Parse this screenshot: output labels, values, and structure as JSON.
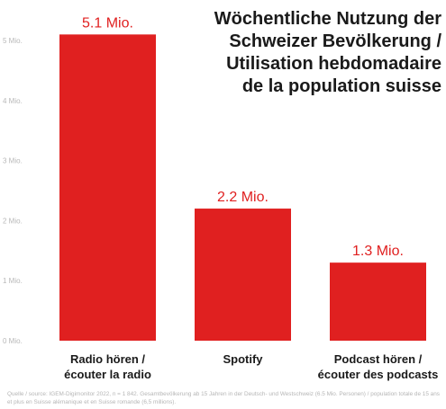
{
  "chart_data": {
    "type": "bar",
    "title_lines": [
      "Wöchentliche Nutzung der",
      "Schweizer Bevölkerung /",
      "Utilisation hebdomadaire",
      "de la population suisse"
    ],
    "categories": [
      [
        "Radio hören /",
        "écouter la radio"
      ],
      [
        "Spotify"
      ],
      [
        "Podcast hören /",
        "écouter des podcasts"
      ]
    ],
    "values": [
      5.1,
      2.2,
      1.3
    ],
    "data_labels": [
      "5.1 Mio.",
      "2.2 Mio.",
      "1.3 Mio."
    ],
    "y_ticks": [
      {
        "value": 0,
        "label": "0 Mio."
      },
      {
        "value": 1,
        "label": "1 Mio."
      },
      {
        "value": 2,
        "label": "2 Mio."
      },
      {
        "value": 3,
        "label": "3 Mio."
      },
      {
        "value": 4,
        "label": "4 Mio."
      },
      {
        "value": 5,
        "label": "5 Mio."
      }
    ],
    "ylim": [
      0,
      5.15
    ],
    "grid": false,
    "legend": "none",
    "colors": {
      "bar": "#e02020",
      "data_label": "#e02020",
      "title": "#1a1a1a",
      "tick": "#b8b8b8",
      "source": "#b6b6b6"
    }
  },
  "source_note": "Quelle / source: IGEM-Digimonitor 2022, n = 1 842. Gesamtbevölkerung ab 15 Jahren in der Deutsch- und Westschweiz (6.5 Mio. Personen) / population totale de 15 ans et plus en Suisse alémanique et en Suisse romande (6,5 millions)."
}
